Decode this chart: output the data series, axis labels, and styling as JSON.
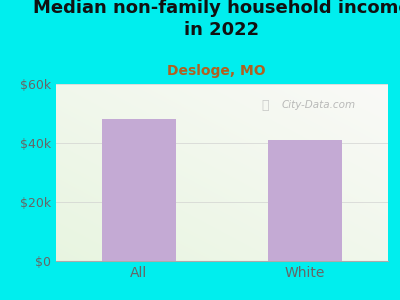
{
  "title": "Median non-family household income\nin 2022",
  "subtitle": "Desloge, MO",
  "categories": [
    "All",
    "White"
  ],
  "values": [
    48000,
    41000
  ],
  "bar_color": "#c4aad4",
  "background_color": "#00EEEE",
  "title_fontsize": 13,
  "subtitle_fontsize": 10,
  "subtitle_color": "#b06020",
  "title_color": "#111111",
  "tick_label_color": "#666666",
  "ylim": [
    0,
    60000
  ],
  "yticks": [
    0,
    20000,
    40000,
    60000
  ],
  "ytick_labels": [
    "$0",
    "$20k",
    "$40k",
    "$60k"
  ],
  "watermark": "City-Data.com",
  "grid_color": "#cccccc",
  "axis_color": "#aaaaaa"
}
